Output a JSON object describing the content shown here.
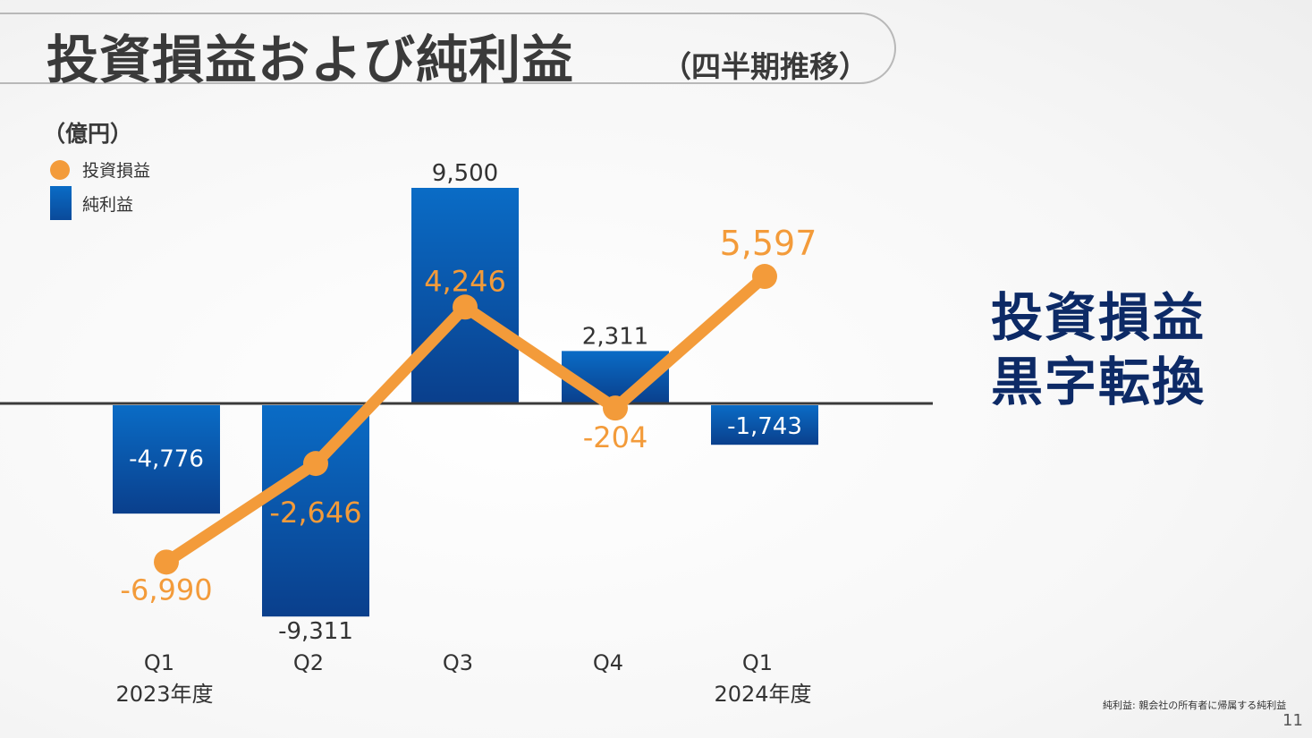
{
  "header": {
    "title": "投資損益および純利益",
    "subtitle": "（四半期推移）"
  },
  "unit_label": "（億円）",
  "legend": {
    "line_label": "投資損益",
    "bar_label": "純利益"
  },
  "callout": {
    "line1": "投資損益",
    "line2": "黒字転換"
  },
  "footnote": "純利益: 親会社の所有者に帰属する純利益",
  "page_number": "11",
  "colors": {
    "bar_top": "#0a6cc6",
    "bar_bottom": "#0a3f8c",
    "line": "#f39b3a",
    "callout_text": "#0d2a66",
    "axis": "#3a3a3a"
  },
  "chart_data": {
    "type": "bar",
    "categories": [
      "Q1",
      "Q2",
      "Q3",
      "Q4",
      "Q1"
    ],
    "fiscal_year_labels": [
      "2023年度",
      "",
      "",
      "",
      "2024年度"
    ],
    "series": [
      {
        "name": "純利益",
        "type": "bar",
        "values": [
          -4776,
          -9311,
          9500,
          2311,
          -1743
        ],
        "labels": [
          "-4,776",
          "-9,311",
          "9,500",
          "2,311",
          "-1,743"
        ]
      },
      {
        "name": "投資損益",
        "type": "line",
        "values": [
          -6990,
          -2646,
          4246,
          -204,
          5597
        ],
        "labels": [
          "-6,990",
          "-2,646",
          "4,246",
          "-204",
          "5,597"
        ]
      }
    ],
    "ylim": [
      -9500,
      10000
    ],
    "legend_position": "top-left",
    "grid": false
  }
}
